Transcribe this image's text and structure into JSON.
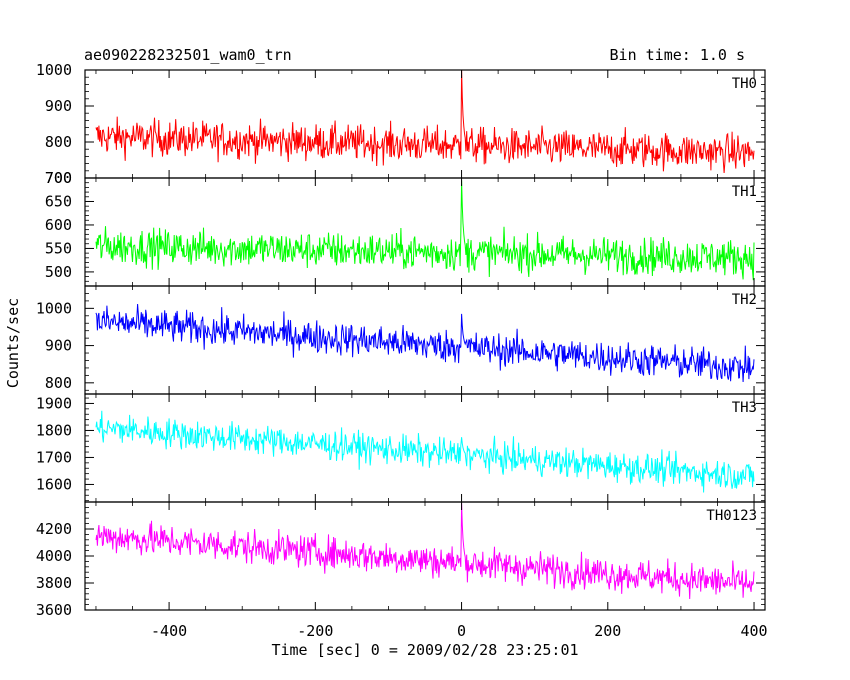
{
  "header": {
    "title": "ae090228232501_wam0_trn",
    "bin_time": "Bin time: 1.0 s"
  },
  "chart_data": {
    "type": "line",
    "xlabel": "Time [sec] 0 = 2009/02/28 23:25:01",
    "ylabel": "Counts/sec",
    "xlim": [
      -515,
      415
    ],
    "x_ticks": [
      -400,
      -200,
      0,
      200,
      400
    ],
    "x_range_data": [
      -500,
      400
    ],
    "bin_time_s": 1.0,
    "grid": false,
    "panels": [
      {
        "name": "TH0",
        "color": "#ff0000",
        "ylim": [
          700,
          1000
        ],
        "y_ticks": [
          700,
          800,
          900,
          1000
        ],
        "trend": {
          "start": 815,
          "end": 770
        },
        "noise_amplitude": 45,
        "peak": {
          "x": 0,
          "value": 1000
        }
      },
      {
        "name": "TH1",
        "color": "#00ff00",
        "ylim": [
          470,
          700
        ],
        "y_ticks": [
          500,
          550,
          600,
          650,
          700
        ],
        "trend": {
          "start": 555,
          "end": 530
        },
        "noise_amplitude": 35,
        "peak": {
          "x": 0,
          "value": 695
        }
      },
      {
        "name": "TH2",
        "color": "#0000ff",
        "ylim": [
          770,
          1060
        ],
        "y_ticks": [
          800,
          900,
          1000
        ],
        "trend": {
          "start": 965,
          "end": 840
        },
        "noise_amplitude": 40,
        "peak": {
          "x": 0,
          "value": 985
        }
      },
      {
        "name": "TH3",
        "color": "#00ffff",
        "ylim": [
          1535,
          1935
        ],
        "y_ticks": [
          1600,
          1700,
          1800,
          1900
        ],
        "trend": {
          "start": 1810,
          "end": 1630
        },
        "noise_amplitude": 50,
        "peak": {
          "x": 0,
          "value": 1775
        }
      },
      {
        "name": "TH0123",
        "color": "#ff00ff",
        "ylim": [
          3600,
          4400
        ],
        "y_ticks": [
          3600,
          3800,
          4000,
          4200
        ],
        "trend": {
          "start": 4150,
          "end": 3790
        },
        "noise_amplitude": 110,
        "peak": {
          "x": 0,
          "value": 4390
        }
      }
    ]
  }
}
